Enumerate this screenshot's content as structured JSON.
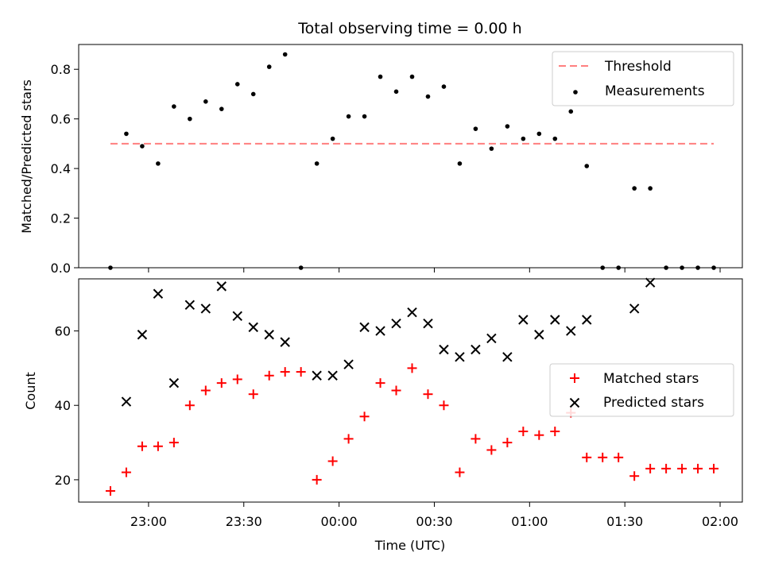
{
  "title": "Total observing time = 0.00 h",
  "chart_data": [
    {
      "type": "scatter",
      "ylabel": "Matched/Predicted stars",
      "ylim": [
        0,
        0.9
      ],
      "yticks": [
        "0.0",
        "0.2",
        "0.4",
        "0.6",
        "0.8"
      ],
      "threshold": {
        "name": "Threshold",
        "value": 0.5,
        "color": "#ff7f7f",
        "x_start": "22:48",
        "x_end": "01:58"
      },
      "series": [
        {
          "name": "Measurements",
          "color": "#000000",
          "x": [
            "22:48",
            "22:53",
            "22:58",
            "23:03",
            "23:08",
            "23:13",
            "23:18",
            "23:23",
            "23:28",
            "23:33",
            "23:38",
            "23:43",
            "23:48",
            "23:53",
            "23:58",
            "00:03",
            "00:08",
            "00:13",
            "00:18",
            "00:23",
            "00:28",
            "00:33",
            "00:38",
            "00:43",
            "00:48",
            "00:53",
            "00:58",
            "01:03",
            "01:08",
            "01:13",
            "01:18",
            "01:23",
            "01:28",
            "01:33",
            "01:38",
            "01:43",
            "01:48",
            "01:53",
            "01:58"
          ],
          "y": [
            0.0,
            0.54,
            0.49,
            0.42,
            0.65,
            0.6,
            0.67,
            0.64,
            0.74,
            0.7,
            0.81,
            0.86,
            0.0,
            0.42,
            0.52,
            0.61,
            0.61,
            0.77,
            0.71,
            0.77,
            0.69,
            0.73,
            0.42,
            0.56,
            0.48,
            0.57,
            0.52,
            0.54,
            0.52,
            0.63,
            0.41,
            0.0,
            0.0,
            0.32,
            0.32,
            0.0,
            0.0,
            0.0,
            0.0
          ]
        }
      ]
    },
    {
      "type": "scatter",
      "ylabel": "Count",
      "xlabel": "Time (UTC)",
      "ylim": [
        14,
        74
      ],
      "yticks": [
        "20",
        "40",
        "60"
      ],
      "xticks": [
        "23:00",
        "23:30",
        "00:00",
        "00:30",
        "01:00",
        "01:30",
        "02:00"
      ],
      "series": [
        {
          "name": "Matched stars",
          "color": "#ff0000",
          "x": [
            "22:48",
            "22:53",
            "22:58",
            "23:03",
            "23:08",
            "23:13",
            "23:18",
            "23:23",
            "23:28",
            "23:33",
            "23:38",
            "23:43",
            "23:48",
            "23:53",
            "23:58",
            "00:03",
            "00:08",
            "00:13",
            "00:18",
            "00:23",
            "00:28",
            "00:33",
            "00:38",
            "00:43",
            "00:48",
            "00:53",
            "00:58",
            "01:03",
            "01:08",
            "01:13",
            "01:18",
            "01:23",
            "01:28",
            "01:33",
            "01:38",
            "01:43",
            "01:48",
            "01:53",
            "01:58"
          ],
          "y": [
            17,
            22,
            29,
            29,
            30,
            40,
            44,
            46,
            47,
            43,
            48,
            49,
            49,
            20,
            25,
            31,
            37,
            46,
            44,
            50,
            43,
            40,
            22,
            31,
            28,
            30,
            33,
            32,
            33,
            38,
            26,
            26,
            26,
            21,
            23,
            23,
            23,
            23,
            23
          ]
        },
        {
          "name": "Predicted stars",
          "color": "#000000",
          "x": [
            "22:53",
            "22:58",
            "23:03",
            "23:08",
            "23:13",
            "23:18",
            "23:23",
            "23:28",
            "23:33",
            "23:38",
            "23:43",
            "23:53",
            "23:58",
            "00:03",
            "00:08",
            "00:13",
            "00:18",
            "00:23",
            "00:28",
            "00:33",
            "00:38",
            "00:43",
            "00:48",
            "00:53",
            "00:58",
            "01:03",
            "01:08",
            "01:13",
            "01:18",
            "01:33",
            "01:38"
          ],
          "y": [
            41,
            59,
            70,
            46,
            67,
            66,
            72,
            64,
            61,
            59,
            57,
            48,
            48,
            51,
            61,
            60,
            62,
            65,
            62,
            55,
            53,
            55,
            58,
            53,
            63,
            59,
            63,
            60,
            63,
            66,
            73
          ]
        }
      ]
    }
  ]
}
